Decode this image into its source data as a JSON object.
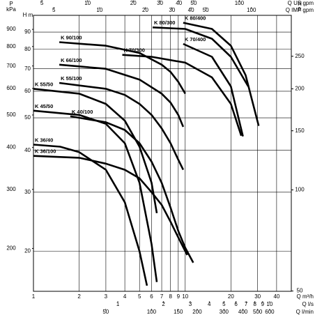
{
  "chart_data": {
    "type": "line",
    "x_axis_title": "Q m³/h",
    "y_axis_title": "H m",
    "xlim": [
      1,
      50
    ],
    "xticks": [
      1,
      2,
      3,
      4,
      5,
      6,
      7,
      8,
      9,
      10,
      20,
      30,
      40
    ],
    "ylim": [
      15.2,
      101
    ],
    "yticks": [
      20,
      30,
      40,
      50,
      60,
      70,
      80,
      90
    ],
    "log_x": true,
    "log_y": true,
    "grid": true,
    "secondary_axes": [
      {
        "side": "left",
        "title": "P",
        "unit": "kPa",
        "lim": [
          149,
          991
        ],
        "ticks": [
          200,
          300,
          400,
          500,
          600,
          700,
          800,
          900
        ]
      },
      {
        "side": "right",
        "title": "H",
        "unit": "ft",
        "lim": [
          49.9,
          331
        ],
        "ticks": [
          50,
          100,
          150,
          200,
          250
        ]
      },
      {
        "side": "top",
        "title": "Q US gpm",
        "lim": [
          4.4,
          220
        ],
        "ticks": [
          5,
          10,
          20,
          30,
          40,
          50,
          100
        ]
      },
      {
        "side": "top",
        "title": "Q IMP gpm",
        "lim": [
          3.67,
          183
        ],
        "ticks": [
          5,
          10,
          20,
          30,
          40,
          50,
          100
        ]
      },
      {
        "side": "bottom",
        "title": "Q l/s",
        "lim": [
          0.278,
          13.9
        ],
        "ticks": [
          1,
          2,
          3,
          4,
          5,
          6,
          7,
          8,
          9,
          10
        ]
      },
      {
        "side": "bottom",
        "title": "Q l/min",
        "lim": [
          16.7,
          833
        ],
        "ticks": [
          50,
          100,
          150,
          200,
          300,
          400,
          500,
          600
        ]
      }
    ],
    "series": [
      {
        "name": "K 36/100",
        "color": "#000000",
        "x": [
          1,
          2,
          3,
          4,
          5,
          6,
          7,
          8,
          9,
          10.3
        ],
        "values": [
          38.5,
          38,
          36.5,
          35,
          33,
          30,
          27.5,
          24.5,
          22,
          19.5
        ]
      },
      {
        "name": "K 36/40",
        "color": "#000000",
        "x": [
          1,
          1.5,
          2,
          3,
          4,
          5,
          5.6
        ],
        "values": [
          41.6,
          41,
          39.5,
          35,
          28,
          20,
          15.8
        ]
      },
      {
        "name": "K 45/50",
        "color": "#000000",
        "x": [
          1,
          2,
          3,
          4,
          5,
          6,
          6.5
        ],
        "values": [
          52.5,
          51,
          48,
          42,
          32,
          21,
          16.2
        ]
      },
      {
        "name": "K 40/100",
        "color": "#000000",
        "x": [
          1.75,
          3,
          4,
          5,
          6,
          7,
          8,
          9,
          10,
          11.3
        ],
        "values": [
          50.5,
          48.5,
          46,
          42,
          37,
          32,
          27,
          23,
          20.5,
          18.5
        ]
      },
      {
        "name": "K 55/50",
        "color": "#000000",
        "x": [
          1,
          2,
          3,
          4,
          5,
          6,
          6.5
        ],
        "values": [
          61,
          59,
          55,
          49,
          41,
          32,
          26
        ]
      },
      {
        "name": "K 55/100",
        "color": "#000000",
        "x": [
          1.48,
          3,
          4,
          5,
          6,
          7,
          8,
          9,
          9.7
        ],
        "values": [
          63.5,
          61,
          58.5,
          55,
          51,
          46.5,
          42,
          37.5,
          35
        ]
      },
      {
        "name": "K 66/100",
        "color": "#000000",
        "x": [
          1.48,
          3,
          5,
          7,
          8,
          9,
          9.7
        ],
        "values": [
          72,
          70,
          65,
          59,
          55.5,
          51,
          47
        ]
      },
      {
        "name": "K 90/100",
        "color": "#000000",
        "x": [
          1.48,
          3,
          5,
          7,
          8,
          9,
          10
        ],
        "values": [
          84,
          82,
          78,
          72,
          68.5,
          64,
          59
        ]
      },
      {
        "name": "K 70/300",
        "color": "#000000",
        "x": [
          3.85,
          6,
          10,
          15,
          20,
          23.4
        ],
        "values": [
          77,
          76,
          73,
          66,
          55,
          44.2
        ]
      },
      {
        "name": "K 80/300",
        "color": "#000000",
        "x": [
          6.1,
          10,
          15,
          20,
          26
        ],
        "values": [
          93,
          92,
          86,
          76,
          62
        ]
      },
      {
        "name": "K 70/400",
        "color": "#000000",
        "x": [
          9.7,
          15,
          20,
          24
        ],
        "values": [
          83,
          76,
          62,
          44
        ]
      },
      {
        "name": "K 80/400",
        "color": "#000000",
        "x": [
          9.7,
          15,
          20,
          25,
          30.5
        ],
        "values": [
          96,
          92,
          82,
          67,
          47.3
        ]
      }
    ]
  }
}
